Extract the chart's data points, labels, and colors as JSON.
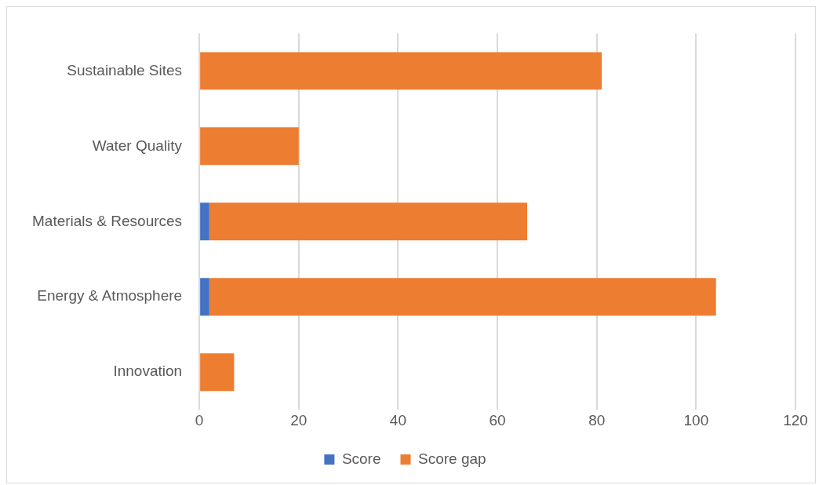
{
  "chart_data": {
    "type": "bar",
    "orientation": "horizontal",
    "stacked": true,
    "categories": [
      "Sustainable Sites",
      "Water Quality",
      "Materials & Resources",
      "Energy & Atmosphere",
      "Innovation"
    ],
    "series": [
      {
        "name": "Score",
        "color": "#4472c4",
        "values": [
          0,
          0,
          2,
          2,
          0
        ]
      },
      {
        "name": "Score gap",
        "color": "#ed7d31",
        "values": [
          81,
          20,
          64,
          102,
          7
        ]
      }
    ],
    "xlim": [
      0,
      120
    ],
    "xticks": [
      0,
      20,
      40,
      60,
      80,
      100,
      120
    ],
    "grid": "x",
    "legend": "bottom"
  }
}
